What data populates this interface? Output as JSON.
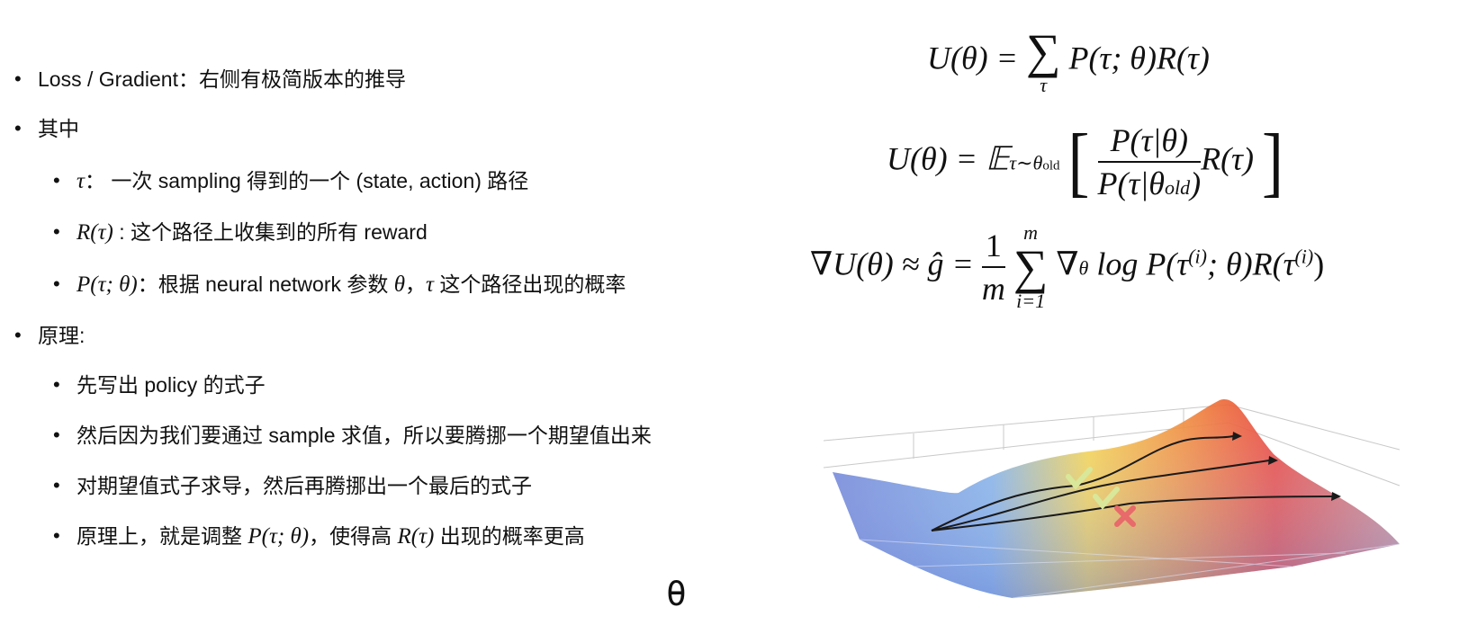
{
  "bullets": {
    "b1": {
      "prefix": "Loss / Gradient：",
      "text": "右侧有极简版本的推导"
    },
    "b2": {
      "text": "其中"
    },
    "b2a": {
      "sym": "τ",
      "text": "：  一次 sampling 得到的一个 (state, action) 路径"
    },
    "b2b": {
      "sym": "R(τ)",
      "text": " : 这个路径上收集到的所有 reward"
    },
    "b2c": {
      "sym": "P(τ; θ)",
      "text1": "：根据 neural network 参数 ",
      "sym2": "θ",
      "text2": "，",
      "sym3": "τ",
      "text3": " 这个路径出现的概率"
    },
    "b3": {
      "text": "原理:"
    },
    "b3a": {
      "text": "先写出 policy 的式子"
    },
    "b3b": {
      "text": "然后因为我们要通过 sample 求值，所以要腾挪一个期望值出来"
    },
    "b3c": {
      "text": "对期望值式子求导，然后再腾挪出一个最后的式子"
    },
    "b3d": {
      "t1": "原理上，就是调整 ",
      "s1": "P(τ; θ)",
      "t2": "，使得高 ",
      "s2": "R(τ)",
      "t3": " 出现的概率更高"
    }
  },
  "formulas": {
    "f1": {
      "lhs": "U(θ) = ",
      "sum": "∑",
      "sum_lower": "τ",
      "rhs": "P(τ; θ)R(τ)"
    },
    "f2": {
      "lhs": "U(θ) = 𝔼",
      "sub": "τ∼θ",
      "subsub": "old",
      "num": "P(τ|θ)",
      "den": "P(τ|θ",
      "den_sub": "old",
      "den_end": ")",
      "rhs": "R(τ)"
    },
    "f3": {
      "lhs": "∇U(θ) ≈ ĝ = ",
      "frac_num": "1",
      "frac_den": "m",
      "sum": "∑",
      "sum_upper": "m",
      "sum_lower": "i=1",
      "body": "∇",
      "body_sub": "θ",
      "body2": " log P(τ",
      "sup1": "(i)",
      "body3": "; θ)R(τ",
      "sup2": "(i)",
      "body4": ")"
    }
  },
  "bottom_label": "θ",
  "colors": {
    "surface_hot": "#e8403a",
    "surface_mid": "#f5d24a",
    "surface_cold": "#6a7fd6",
    "check": "#d9e79a",
    "cross": "#e86a6a"
  }
}
